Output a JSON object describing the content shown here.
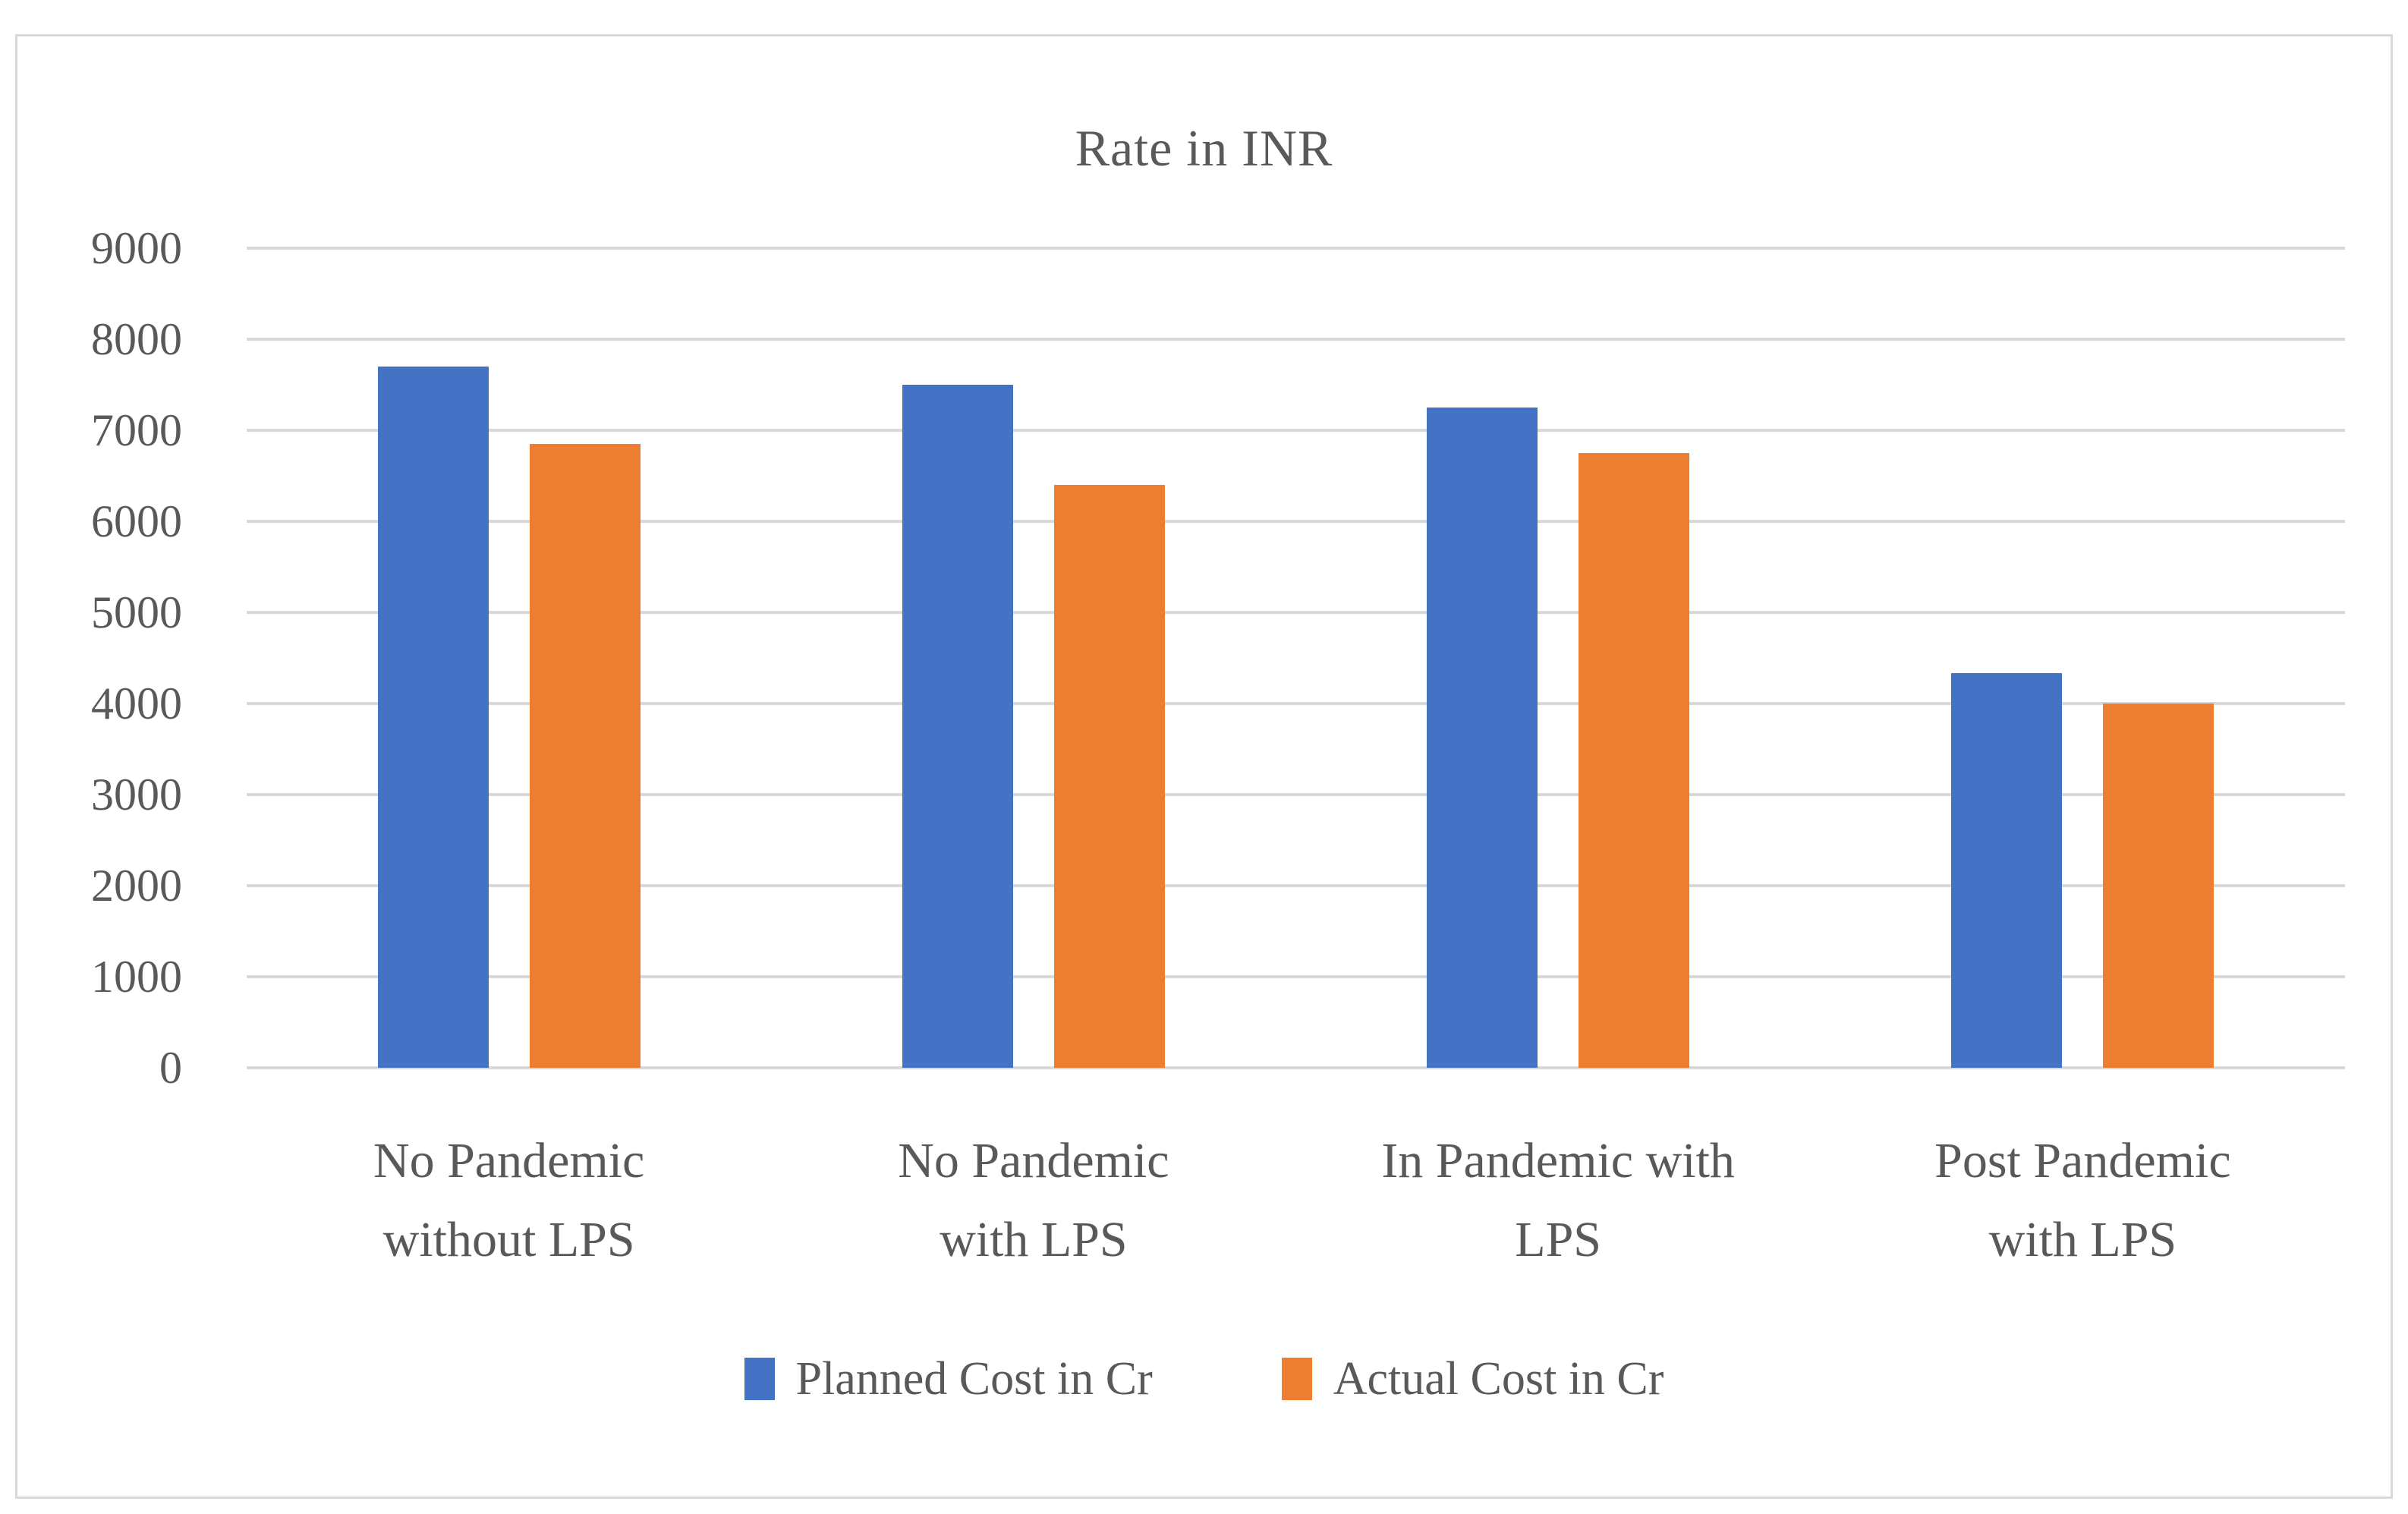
{
  "page": {
    "background": "#FFFFFF",
    "frame_border_color": "#D9D9D9",
    "text_color": "#595959",
    "gridline_color": "#D9D9D9"
  },
  "chart_data": {
    "type": "bar",
    "title": "Rate in INR",
    "categories": [
      "No Pandemic without LPS",
      "No Pandemic with LPS",
      "In Pandemic with LPS",
      "Post Pandemic with LPS"
    ],
    "category_label_lines": [
      [
        "No Pandemic",
        "without LPS"
      ],
      [
        "No Pandemic",
        "with LPS"
      ],
      [
        "In Pandemic with",
        "LPS"
      ],
      [
        "Post Pandemic",
        "with LPS"
      ]
    ],
    "series": [
      {
        "name": "Planned Cost in Cr",
        "color": "#4472C4",
        "values": [
          7700,
          7500,
          7250,
          4330
        ]
      },
      {
        "name": "Actual Cost in Cr",
        "color": "#ED7D31",
        "values": [
          6850,
          6400,
          6750,
          4000
        ]
      }
    ],
    "xlabel": "",
    "ylabel": "",
    "ylim": [
      0,
      9000
    ],
    "ytick_interval": 1000,
    "yticks": [
      0,
      1000,
      2000,
      3000,
      4000,
      5000,
      6000,
      7000,
      8000,
      9000
    ],
    "grid": true,
    "legend_position": "bottom"
  }
}
